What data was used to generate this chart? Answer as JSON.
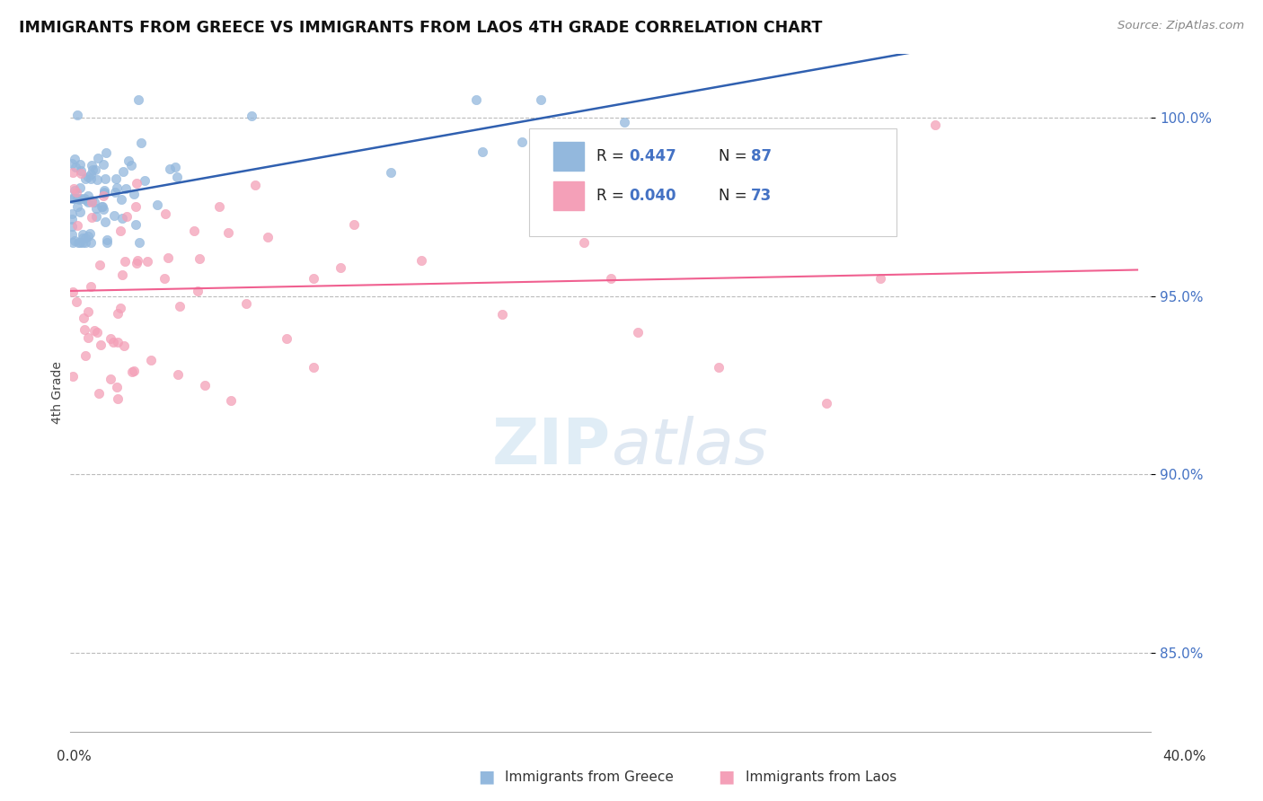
{
  "title": "IMMIGRANTS FROM GREECE VS IMMIGRANTS FROM LAOS 4TH GRADE CORRELATION CHART",
  "source": "Source: ZipAtlas.com",
  "ylabel": "4th Grade",
  "xlim": [
    0.0,
    0.4
  ],
  "ylim": [
    0.828,
    1.018
  ],
  "yticks": [
    0.85,
    0.9,
    0.95,
    1.0
  ],
  "ytick_labels": [
    "85.0%",
    "90.0%",
    "95.0%",
    "100.0%"
  ],
  "greece_color": "#93b8dd",
  "laos_color": "#f4a0b8",
  "greece_line_color": "#3060b0",
  "laos_line_color": "#f06090",
  "legend_box_color": "#e8f0fa",
  "legend_box_edge": "#cccccc",
  "background_color": "#ffffff",
  "greece_seed": 1234,
  "laos_seed": 5678
}
